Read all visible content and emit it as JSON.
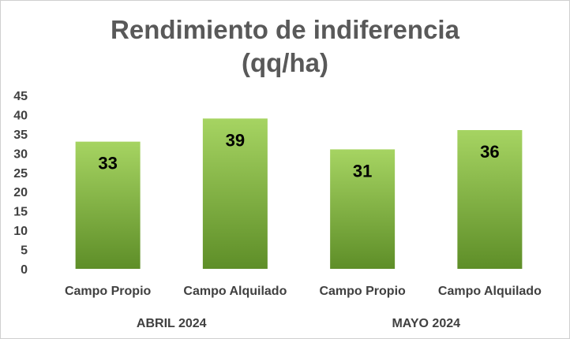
{
  "chart_data": {
    "type": "bar",
    "title_lines": [
      "Rendimiento de indiferencia",
      "(qq/ha)"
    ],
    "categories": [
      "Campo Propio",
      "Campo Alquilado",
      "Campo Propio",
      "Campo Alquilado"
    ],
    "groups": [
      {
        "label": "ABRIL 2024",
        "categories": [
          0,
          1
        ]
      },
      {
        "label": "MAYO 2024",
        "categories": [
          2,
          3
        ]
      }
    ],
    "values": [
      33,
      39,
      31,
      36
    ],
    "ylim": [
      0,
      45
    ],
    "yticks": [
      0,
      5,
      10,
      15,
      20,
      25,
      30,
      35,
      40,
      45
    ],
    "grid": false,
    "legend": "none",
    "colors": {
      "bar_top": "#a6d462",
      "bar_bottom": "#5e8e28",
      "text": "#404040",
      "title": "#595959"
    }
  }
}
